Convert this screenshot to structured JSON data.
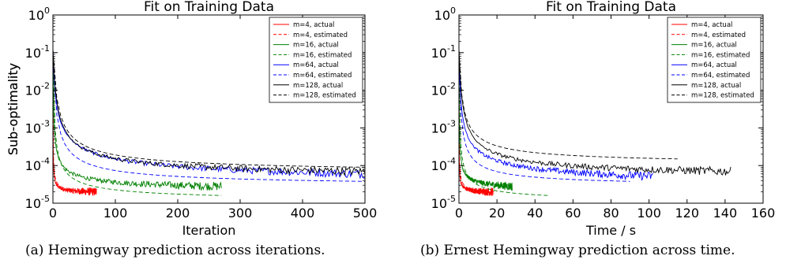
{
  "chart_data": [
    {
      "type": "line",
      "title": "Fit on Training Data",
      "xlabel": "Iteration",
      "ylabel": "Sub-optimality",
      "xlim": [
        0,
        500
      ],
      "ylim": [
        1e-05,
        1
      ],
      "xscale": "linear",
      "yscale": "log",
      "xticks": [
        "0",
        "100",
        "200",
        "300",
        "400",
        "500"
      ],
      "ytick_bases": [
        "10",
        "10",
        "10",
        "10",
        "10",
        "10"
      ],
      "ytick_exps": [
        "-5",
        "-4",
        "-3",
        "-2",
        "-1",
        "0"
      ],
      "legend": "top-right",
      "series": [
        {
          "name": "m=4, actual",
          "color": "#ff0000",
          "dash": false,
          "noisy": true,
          "x_end": 70,
          "y_end": 2e-05,
          "k": 0.065,
          "p": 0.7
        },
        {
          "name": "m=4, estimated",
          "color": "#ff0000",
          "dash": true,
          "noisy": false,
          "x_end": 70,
          "y_end": 2e-05,
          "k": 0.065,
          "p": 0.6
        },
        {
          "name": "m=16, actual",
          "color": "#008000",
          "dash": false,
          "noisy": true,
          "x_end": 270,
          "y_end": 2.8e-05,
          "k": 0.045,
          "p": 0.5
        },
        {
          "name": "m=16, estimated",
          "color": "#008000",
          "dash": true,
          "noisy": false,
          "x_end": 270,
          "y_end": 1.6e-05,
          "k": 0.022,
          "p": 0.55
        },
        {
          "name": "m=64, actual",
          "color": "#0000ff",
          "dash": false,
          "noisy": true,
          "x_end": 500,
          "y_end": 6e-05,
          "k": 0.02,
          "p": 0.4
        },
        {
          "name": "m=64, estimated",
          "color": "#0000ff",
          "dash": true,
          "noisy": false,
          "x_end": 500,
          "y_end": 3.8e-05,
          "k": 0.015,
          "p": 0.6
        },
        {
          "name": "m=128, actual",
          "color": "#000000",
          "dash": false,
          "noisy": true,
          "x_end": 500,
          "y_end": 7e-05,
          "k": 0.012,
          "p": 0.55
        },
        {
          "name": "m=128, estimated",
          "color": "#000000",
          "dash": true,
          "noisy": false,
          "x_end": 500,
          "y_end": 9e-05,
          "k": 0.01,
          "p": 0.6
        }
      ]
    },
    {
      "type": "line",
      "title": "Fit on Training Data",
      "xlabel": "Time / s",
      "ylabel": "Sub-optimality",
      "xlim": [
        0,
        160
      ],
      "ylim": [
        1e-05,
        1
      ],
      "xscale": "linear",
      "yscale": "log",
      "xticks": [
        "0",
        "20",
        "40",
        "60",
        "80",
        "100",
        "120",
        "140",
        "160"
      ],
      "ytick_bases": [
        "10",
        "10",
        "10",
        "10",
        "10",
        "10"
      ],
      "ytick_exps": [
        "-5",
        "-4",
        "-3",
        "-2",
        "-1",
        "0"
      ],
      "legend": "top-right",
      "series": [
        {
          "name": "m=4, actual",
          "color": "#ff0000",
          "dash": false,
          "noisy": true,
          "x_end": 18,
          "y_end": 2e-05,
          "k": 0.065,
          "p": 0.7
        },
        {
          "name": "m=4, estimated",
          "color": "#ff0000",
          "dash": true,
          "noisy": false,
          "x_end": 20,
          "y_end": 2e-05,
          "k": 0.065,
          "p": 0.6
        },
        {
          "name": "m=16, actual",
          "color": "#008000",
          "dash": false,
          "noisy": true,
          "x_end": 28,
          "y_end": 2.8e-05,
          "k": 0.045,
          "p": 0.5
        },
        {
          "name": "m=16, estimated",
          "color": "#008000",
          "dash": true,
          "noisy": false,
          "x_end": 47,
          "y_end": 1.6e-05,
          "k": 0.022,
          "p": 0.55
        },
        {
          "name": "m=64, actual",
          "color": "#0000ff",
          "dash": false,
          "noisy": true,
          "x_end": 102,
          "y_end": 5.2e-05,
          "k": 0.02,
          "p": 0.4
        },
        {
          "name": "m=64, estimated",
          "color": "#0000ff",
          "dash": true,
          "noisy": false,
          "x_end": 90,
          "y_end": 3.8e-05,
          "k": 0.015,
          "p": 0.6
        },
        {
          "name": "m=128, actual",
          "color": "#000000",
          "dash": false,
          "noisy": true,
          "x_end": 143,
          "y_end": 7e-05,
          "k": 0.012,
          "p": 0.55
        },
        {
          "name": "m=128, estimated",
          "color": "#000000",
          "dash": true,
          "noisy": false,
          "x_end": 115,
          "y_end": 0.00015,
          "k": 0.01,
          "p": 0.6
        }
      ]
    }
  ],
  "captions": {
    "left": "(a)  Hemingway prediction across iterations.",
    "right": "(b)  Ernest Hemingway prediction across time."
  }
}
